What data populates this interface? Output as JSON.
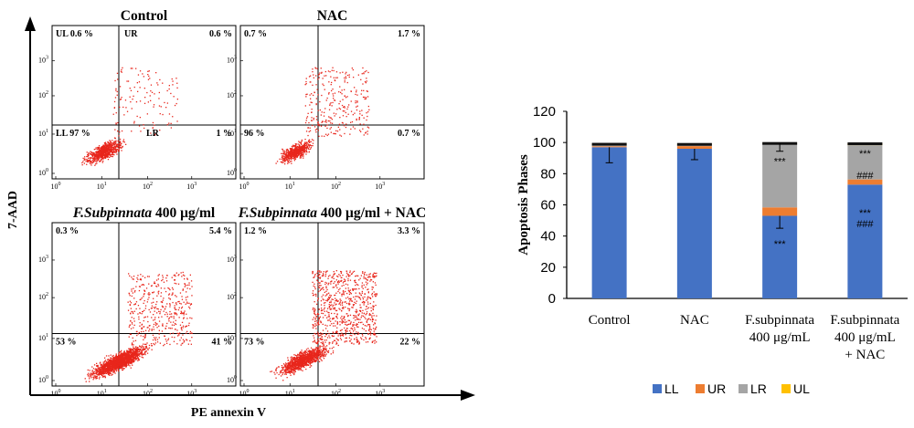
{
  "flow": {
    "y_axis_label": "7-AAD",
    "x_axis_label": "PE annexin V",
    "tick_labels": [
      "10",
      "0",
      "1",
      "2",
      "3"
    ],
    "panels": [
      {
        "title": "Control",
        "title_italic": "",
        "ul": "0.6 %",
        "ur": "0.6 %",
        "ll": "97 %",
        "lr": "1 %",
        "q_ul": "UL",
        "q_ur": "UR",
        "q_ll": "LL",
        "q_lr": "LR"
      },
      {
        "title": "NAC",
        "title_italic": "",
        "ul": "0.7 %",
        "ur": "1.7 %",
        "ll": "96 %",
        "lr": "0.7 %",
        "q_ul": "",
        "q_ur": "",
        "q_ll": "",
        "q_lr": ""
      },
      {
        "title": " 400 μg/ml",
        "title_italic": "F.Subpinnata",
        "ul": "0.3 %",
        "ur": "5.4 %",
        "ll": "53 %",
        "lr": "41 %",
        "q_ul": "",
        "q_ur": "",
        "q_ll": "",
        "q_lr": ""
      },
      {
        "title": " 400 μg/ml + NAC",
        "title_italic": "F.Subpinnata",
        "ul": "1.2 %",
        "ur": "3.3 %",
        "ll": "73 %",
        "lr": "22 %",
        "q_ul": "",
        "q_ur": "",
        "q_ll": "",
        "q_lr": ""
      }
    ],
    "dot_color": "#e8261c"
  },
  "chart_data": {
    "type": "bar",
    "stacked": true,
    "categories": [
      "Control",
      "NAC",
      "F.subpinnata\n400 μg/mL",
      "F.subpinnata\n400 μg/mL\n+ NAC"
    ],
    "ylabel": "Apoptosis Phases",
    "ylim": [
      0,
      120
    ],
    "yticks": [
      0,
      20,
      40,
      60,
      80,
      100,
      120
    ],
    "series": [
      {
        "name": "LL",
        "color": "#4472c4",
        "values": [
          97,
          96,
          53,
          73
        ],
        "errors": [
          10,
          7,
          8,
          0
        ]
      },
      {
        "name": "UR",
        "color": "#ed7d31",
        "values": [
          0.6,
          1.7,
          5.4,
          3.3
        ],
        "errors": [
          0,
          0,
          0,
          0
        ]
      },
      {
        "name": "LR",
        "color": "#a5a5a5",
        "values": [
          1,
          0.7,
          41,
          22
        ],
        "errors": [
          0,
          0,
          5,
          0
        ]
      },
      {
        "name": "UL",
        "color": "#ffc000",
        "values": [
          0.6,
          0.7,
          0.3,
          1.2
        ],
        "errors": [
          0,
          0,
          0,
          0
        ]
      }
    ],
    "annotations": [
      {
        "category": 2,
        "value": 35,
        "text": "***"
      },
      {
        "category": 2,
        "value": 88,
        "text": "***"
      },
      {
        "category": 3,
        "value": 55,
        "text": "***"
      },
      {
        "category": 3,
        "value": 48,
        "text": "###"
      },
      {
        "category": 3,
        "value": 79,
        "text": "###"
      },
      {
        "category": 3,
        "value": 93,
        "text": "***"
      }
    ],
    "legend_position": "bottom",
    "grid": false
  }
}
